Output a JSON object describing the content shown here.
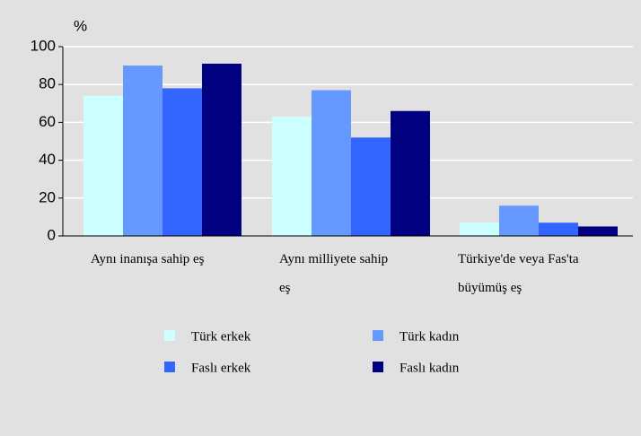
{
  "chart_data": {
    "type": "bar",
    "y_label": "%",
    "categories": [
      "Aynı inanışa sahip eş",
      "Aynı milliyete sahip eş",
      "Türkiye'de veya Fas'ta büyümüş eş"
    ],
    "series": [
      {
        "name": "Türk erkek",
        "color": "#ccffff",
        "values": [
          74,
          63,
          7
        ]
      },
      {
        "name": "Türk kadın",
        "color": "#6699ff",
        "values": [
          90,
          77,
          16
        ]
      },
      {
        "name": "Faslı erkek",
        "color": "#3366ff",
        "values": [
          78,
          52,
          7
        ]
      },
      {
        "name": "Faslı kadın",
        "color": "#000080",
        "values": [
          91,
          66,
          5
        ]
      }
    ],
    "ylim": [
      0,
      100
    ],
    "yticks": [
      0,
      20,
      40,
      60,
      80,
      100
    ],
    "grid": true
  }
}
